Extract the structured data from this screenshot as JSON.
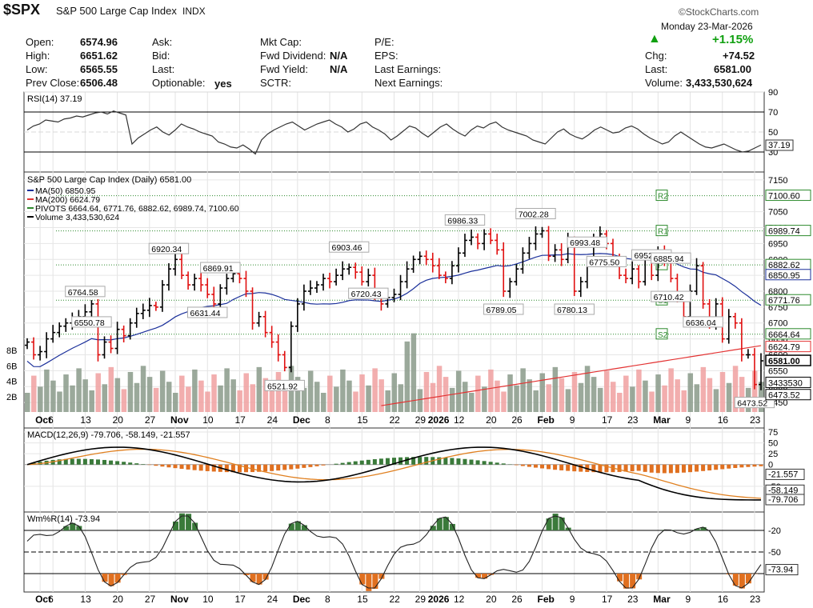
{
  "header": {
    "symbol": "$SPX",
    "name": "S&P 500 Large Cap Index",
    "exchange": "INDX",
    "brand": "©StockCharts.com",
    "date": "Monday  23-Mar-2026",
    "change_pct": "+1.15%",
    "stats": {
      "open_label": "Open:",
      "open": "6574.96",
      "high_label": "High:",
      "high": "6651.62",
      "low_label": "Low:",
      "low": "6565.55",
      "prev_label": "Prev Close:",
      "prev": "6506.48",
      "ask_label": "Ask:",
      "bid_label": "Bid:",
      "last_label": "Last:",
      "optionable_label": "Optionable:",
      "optionable": "yes",
      "mktcap_label": "Mkt Cap:",
      "fwddiv_label": "Fwd Dividend:",
      "fwddiv": "N/A",
      "fwdyield_label": "Fwd Yield:",
      "fwdyield": "N/A",
      "sctr_label": "SCTR:",
      "pe_label": "P/E:",
      "eps_label": "EPS:",
      "lastearn_label": "Last Earnings:",
      "nextearn_label": "Next Earnings:",
      "chg_label": "Chg:",
      "chg": "+74.52",
      "last2_label": "Last:",
      "last2": "6581.00",
      "volume_label": "Volume:",
      "volume": "3,433,530,624"
    }
  },
  "colors": {
    "up": "#000000",
    "down": "#e01010",
    "ma50": "#1a2f9a",
    "ma200": "#e33333",
    "pivot": "#2c8a2c",
    "vol_up": "#8a9a8a",
    "vol_down": "#f0a0a0",
    "macd_hist": "#e07020",
    "wmr_fill": "#3a7a3a",
    "wmr_low_fill": "#e07020"
  },
  "chart_data": [
    {
      "panel": "rsi",
      "type": "line",
      "label": "RSI(14) 37.19",
      "ylim": [
        10,
        90
      ],
      "ticks": [
        "90",
        "70",
        "50",
        "30"
      ],
      "last_label": "37.19",
      "values": [
        52,
        56,
        58,
        62,
        61,
        60,
        63,
        64,
        66,
        65,
        67,
        69,
        70,
        68,
        71,
        69,
        67,
        38,
        44,
        48,
        52,
        55,
        50,
        47,
        52,
        58,
        55,
        53,
        50,
        48,
        46,
        40,
        38,
        35,
        34,
        37,
        33,
        28,
        42,
        48,
        52,
        55,
        58,
        60,
        56,
        52,
        55,
        58,
        60,
        62,
        58,
        55,
        50,
        53,
        58,
        60,
        55,
        52,
        48,
        42,
        46,
        51,
        56,
        54,
        49,
        45,
        50,
        55,
        58,
        53,
        49,
        46,
        52,
        56,
        54,
        58,
        60,
        55,
        52,
        50,
        48,
        46,
        42,
        40,
        38,
        44,
        50,
        53,
        48,
        45,
        43,
        47,
        52,
        55,
        52,
        49,
        50,
        54,
        56,
        53,
        48,
        44,
        41,
        38,
        40,
        46,
        50,
        46,
        42,
        38,
        35,
        34,
        36,
        38,
        35,
        32,
        30,
        31,
        34,
        37
      ]
    },
    {
      "panel": "price",
      "type": "ohlc",
      "title": "S&P 500 Large Cap Index (Daily) 6581.00",
      "legend": [
        "MA(50) 6850.95",
        "MA(200) 6624.79",
        "PIVOTS 6664.64, 6771.76, 6882.62, 6989.74, 7100.60",
        "Volume 3,433,530,624"
      ],
      "ylim": [
        6420,
        7175
      ],
      "y_ticks": [
        "7150",
        "7050",
        "7000",
        "6950",
        "6900",
        "6850",
        "6800",
        "6750",
        "6700",
        "6650",
        "6600",
        "6550",
        "6500",
        "6450"
      ],
      "vol_ticks": [
        "8B",
        "6B",
        "4B",
        "2B"
      ],
      "x_labels": [
        {
          "i": 2,
          "t": "Oct"
        },
        {
          "i": 4,
          "t": "6"
        },
        {
          "i": 9,
          "t": "13"
        },
        {
          "i": 14,
          "t": "20"
        },
        {
          "i": 19,
          "t": "27"
        },
        {
          "i": 23,
          "t": "Nov"
        },
        {
          "i": 28,
          "t": "10"
        },
        {
          "i": 33,
          "t": "17"
        },
        {
          "i": 38,
          "t": "24"
        },
        {
          "i": 42,
          "t": "Dec"
        },
        {
          "i": 47,
          "t": "8"
        },
        {
          "i": 52,
          "t": "15"
        },
        {
          "i": 57,
          "t": "22"
        },
        {
          "i": 61,
          "t": "29"
        },
        {
          "i": 63,
          "t": "2026"
        },
        {
          "i": 67,
          "t": "12"
        },
        {
          "i": 72,
          "t": "20"
        },
        {
          "i": 76,
          "t": "26"
        },
        {
          "i": 80,
          "t": "Feb"
        },
        {
          "i": 85,
          "t": "9"
        },
        {
          "i": 90,
          "t": "17"
        },
        {
          "i": 94,
          "t": "23"
        },
        {
          "i": 98,
          "t": "Mar"
        },
        {
          "i": 103,
          "t": "9"
        },
        {
          "i": 108,
          "t": "16"
        },
        {
          "i": 113,
          "t": "23"
        }
      ],
      "close": [
        6640,
        6600,
        6610,
        6650,
        6670,
        6690,
        6700,
        6715,
        6720,
        6735,
        6760,
        6600,
        6640,
        6620,
        6680,
        6660,
        6700,
        6730,
        6740,
        6755,
        6750,
        6820,
        6870,
        6900,
        6850,
        6820,
        6840,
        6820,
        6790,
        6760,
        6810,
        6840,
        6855,
        6840,
        6800,
        6700,
        6720,
        6670,
        6640,
        6600,
        6560,
        6690,
        6760,
        6800,
        6810,
        6820,
        6840,
        6830,
        6850,
        6870,
        6875,
        6860,
        6830,
        6850,
        6790,
        6760,
        6780,
        6790,
        6830,
        6870,
        6900,
        6910,
        6900,
        6880,
        6850,
        6840,
        6880,
        6920,
        6960,
        6970,
        6950,
        6980,
        6960,
        6930,
        6800,
        6830,
        6870,
        6920,
        6950,
        6980,
        6990,
        6910,
        6930,
        6900,
        6960,
        6800,
        6830,
        6890,
        6960,
        6980,
        6950,
        6900,
        6850,
        6840,
        6870,
        6830,
        6900,
        6850,
        6920,
        6900,
        6840,
        6780,
        6720,
        6800,
        6880,
        6760,
        6700,
        6760,
        6650,
        6720,
        6700,
        6600,
        6600,
        6506.48,
        6581
      ],
      "low_annotations": [
        {
          "i": 10,
          "t": "6550.78"
        },
        {
          "i": 28,
          "t": "6631.44"
        },
        {
          "i": 40,
          "t": "6521.92"
        },
        {
          "i": 53,
          "t": "6720.43"
        },
        {
          "i": 74,
          "t": "6789.05"
        },
        {
          "i": 85,
          "t": "6780.13"
        },
        {
          "i": 90,
          "t": "6775.50"
        },
        {
          "i": 100,
          "t": "6710.42"
        },
        {
          "i": 105,
          "t": "6636.04"
        },
        {
          "i": 113,
          "t": "6473.52"
        }
      ],
      "high_annotations": [
        {
          "i": 9,
          "t": "6764.58"
        },
        {
          "i": 22,
          "t": "6920.34"
        },
        {
          "i": 30,
          "t": "6869.91"
        },
        {
          "i": 50,
          "t": "6903.46"
        },
        {
          "i": 68,
          "t": "6986.33"
        },
        {
          "i": 79,
          "t": "7002.28"
        },
        {
          "i": 87,
          "t": "6993.48"
        },
        {
          "i": 97,
          "t": "6952.51"
        },
        {
          "i": 100,
          "t": "6885.94"
        }
      ],
      "price_boxes": [
        "7100.60",
        "6989.74",
        "6882.62",
        "6850.95",
        "6771.76",
        "6664.64",
        "6624.79",
        "6581.00",
        "3433530",
        "6473.52"
      ],
      "pivot_tags": [
        "R2",
        "R1",
        "P",
        "S1",
        "S2"
      ]
    },
    {
      "panel": "macd",
      "type": "line",
      "label": "MACD(12,26,9) -79.706, -58.149, -21.557",
      "ylim": [
        -100,
        75
      ],
      "ticks": [
        "75",
        "50",
        "25",
        "0",
        "-50"
      ],
      "last_labels": [
        "-21.557",
        "-58.149",
        "-79.706"
      ]
    },
    {
      "panel": "wmr",
      "type": "line",
      "label": "Wm%R(14) -73.94",
      "ylim": [
        -100,
        0
      ],
      "ticks": [
        "-20",
        "-50"
      ],
      "last_label": "-73.94"
    }
  ]
}
